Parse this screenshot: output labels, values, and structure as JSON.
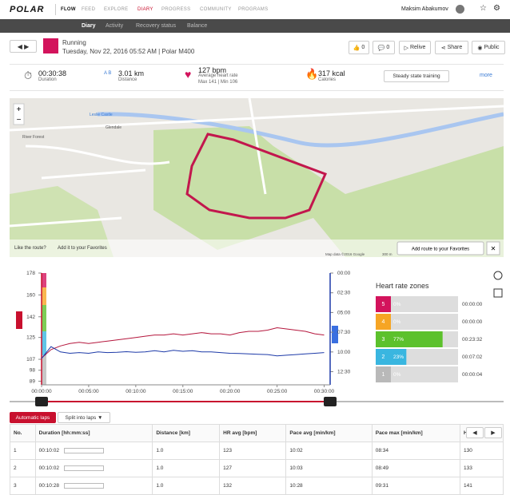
{
  "nav": {
    "logo": "POLAR",
    "items": [
      "FLOW",
      "FEED",
      "EXPLORE",
      "DIARY",
      "PROGRESS",
      "COMMUNITY",
      "PROGRAMS"
    ],
    "user": "Maksim Abakumov"
  },
  "subnav": [
    "Diary",
    "Activity",
    "Recovery status",
    "Balance"
  ],
  "header": {
    "sport": "Running",
    "date": "Tuesday, Nov 22, 2016 05:52 AM | Polar M400",
    "likes": "0",
    "comments": "0",
    "actions": [
      "Relive",
      "Share",
      "Public"
    ]
  },
  "summary": {
    "duration": "00:30:38",
    "duration_label": "Duration",
    "distance": "3.01 km",
    "distance_label": "Distance",
    "hr": "127 bpm",
    "hr_label": "Average heart rate",
    "hr_range": "Max 141 | Min 106",
    "calories": "317 kcal",
    "calories_label": "Calories",
    "benefit": "Steady state training",
    "more": "more"
  },
  "map": {
    "prompt": "Like the route?",
    "prompt_link": "Add it to your Favorites",
    "button": "Add route to your Favorites",
    "credit": "Map data ©2016 Google",
    "scale": "300 m",
    "places": [
      "River Forest",
      "Glendale",
      "Leslie Castle"
    ]
  },
  "chart_data": {
    "type": "line",
    "x": [
      0,
      60,
      120,
      180,
      240,
      300,
      360,
      420,
      480,
      540,
      600,
      660,
      720,
      780,
      840,
      900,
      960,
      1020,
      1080,
      1140,
      1200,
      1260,
      1320,
      1380,
      1440,
      1500,
      1560,
      1620,
      1680,
      1740,
      1800
    ],
    "xlim": [
      0,
      1838
    ],
    "xticks": [
      {
        "value": 0,
        "label": "00:00:00"
      },
      {
        "value": 300,
        "label": "00:05:00"
      },
      {
        "value": 600,
        "label": "00:10:00"
      },
      {
        "value": 900,
        "label": "00:15:00"
      },
      {
        "value": 1200,
        "label": "00:20:00"
      },
      {
        "value": 1500,
        "label": "00:25:00"
      },
      {
        "value": 1800,
        "label": "00:30:00"
      }
    ],
    "ylim": [
      86,
      178
    ],
    "yticks": [
      89,
      98,
      107,
      125,
      142,
      160,
      178
    ],
    "y2lim": [
      0,
      850
    ],
    "y2ticks": [
      {
        "value": 0,
        "label": "00:00"
      },
      {
        "value": 150,
        "label": "02:30"
      },
      {
        "value": 300,
        "label": "05:00"
      },
      {
        "value": 450,
        "label": "07:30"
      },
      {
        "value": 600,
        "label": "10:00"
      },
      {
        "value": 750,
        "label": "12:30"
      }
    ],
    "series": [
      {
        "color": "#b5173d",
        "values": [
          108,
          115,
          118,
          120,
          121,
          120,
          121,
          122,
          123,
          124,
          125,
          126,
          127,
          127,
          128,
          127,
          128,
          129,
          128,
          128,
          127,
          129,
          130,
          130,
          131,
          133,
          132,
          131,
          130,
          128,
          127
        ]
      },
      {
        "color": "#1d3aa8",
        "axis": "y2",
        "values": [
          650,
          560,
          600,
          610,
          605,
          610,
          600,
          605,
          602,
          598,
          603,
          600,
          590,
          600,
          588,
          595,
          590,
          600,
          600,
          605,
          610,
          612,
          615,
          618,
          620,
          630,
          625,
          620,
          615,
          610,
          605
        ]
      }
    ]
  },
  "zones": {
    "title": "Heart rate zones",
    "labels": [
      "5",
      "4",
      "3",
      "2",
      "1"
    ],
    "values": [
      0,
      0,
      77,
      23,
      0
    ],
    "value_labels": [
      "0%",
      "0%",
      "77%",
      "23%",
      "0%"
    ],
    "times": [
      "00:00:00",
      "00:00:00",
      "00:23:32",
      "00:07:02",
      "00:00:04"
    ],
    "colors": [
      "#d3135c",
      "#f6a524",
      "#5cc12c",
      "#39b6e0",
      "#b9b9b9"
    ]
  },
  "laps": {
    "tabs": [
      "Automatic laps",
      "Split into laps"
    ],
    "columns": [
      "No.",
      "Duration [hh:mm:ss]",
      "Distance [km]",
      "HR avg [bpm]",
      "Pace avg [min/km]",
      "Pace max [min/km]",
      "HR max"
    ],
    "rows": [
      [
        "1",
        "00:10:02",
        "1.0",
        "123",
        "10:02",
        "08:34",
        "130"
      ],
      [
        "2",
        "00:10:02",
        "1.0",
        "127",
        "10:03",
        "08:49",
        "133"
      ],
      [
        "3",
        "00:10:28",
        "1.0",
        "132",
        "10:28",
        "09:31",
        "141"
      ]
    ]
  }
}
